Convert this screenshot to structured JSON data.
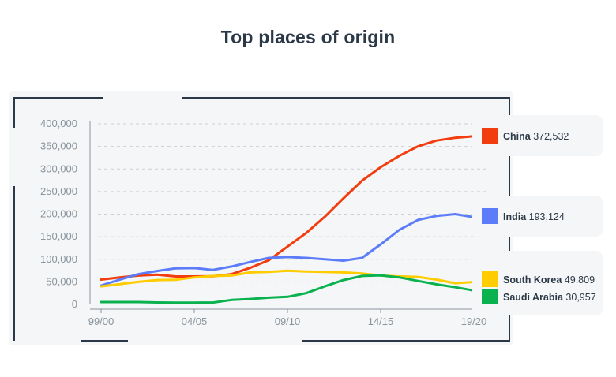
{
  "title": "Top places of origin",
  "chart_data": {
    "type": "line",
    "x_ticks": [
      "99/00",
      "04/05",
      "09/10",
      "14/15",
      "19/20"
    ],
    "y_ticks": [
      "400,000",
      "350,000",
      "300,000",
      "250,000",
      "200,000",
      "150,000",
      "100,000",
      "50,000",
      "0"
    ],
    "ylim": [
      0,
      400000
    ],
    "grid": "horizontal dashed",
    "x_years": [
      1999,
      2000,
      2001,
      2002,
      2003,
      2004,
      2005,
      2006,
      2007,
      2008,
      2009,
      2010,
      2011,
      2012,
      2013,
      2014,
      2015,
      2016,
      2017,
      2018,
      2019
    ],
    "series": [
      {
        "name": "China",
        "label_value": "372,532",
        "color": "#f23d0f",
        "values": [
          55000,
          60000,
          64000,
          66000,
          62000,
          62000,
          62500,
          67000,
          81000,
          98000,
          128000,
          158000,
          194000,
          235000,
          274000,
          304000,
          329000,
          350000,
          363000,
          369000,
          372532
        ]
      },
      {
        "name": "India",
        "label_value": "193,124",
        "color": "#5c7cfa",
        "values": [
          42000,
          55000,
          67000,
          74000,
          80000,
          80500,
          76500,
          84000,
          94000,
          103000,
          105000,
          103000,
          100000,
          97000,
          103000,
          133000,
          165000,
          187000,
          196000,
          200000,
          193124
        ]
      },
      {
        "name": "South Korea",
        "label_value": "49,809",
        "color": "#ffcc00",
        "values": [
          40000,
          45000,
          50000,
          54000,
          54500,
          60000,
          63000,
          64000,
          71000,
          72000,
          74500,
          73000,
          72000,
          71000,
          68500,
          64000,
          62000,
          61000,
          55000,
          47000,
          49809
        ]
      },
      {
        "name": "Saudi Arabia",
        "label_value": "30,957",
        "color": "#09b24f",
        "values": [
          5200,
          5200,
          5200,
          4400,
          4000,
          4000,
          4200,
          10000,
          12000,
          15000,
          17000,
          25000,
          40000,
          54000,
          63000,
          64500,
          60000,
          52000,
          44500,
          38000,
          30957
        ]
      }
    ]
  }
}
